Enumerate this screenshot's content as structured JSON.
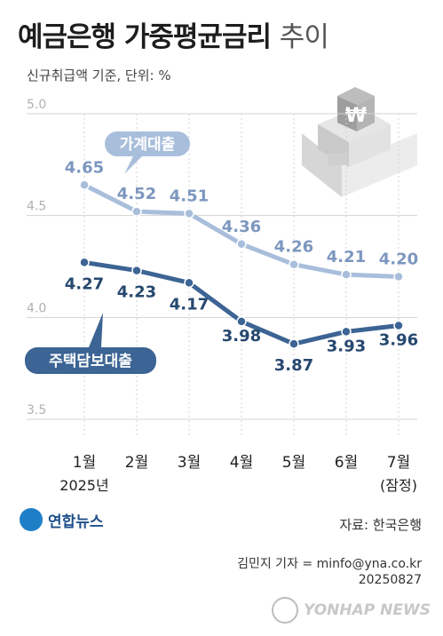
{
  "header": {
    "title_main": "예금은행 가중평균금리",
    "title_suffix": "추이",
    "subtitle": "신규취급액 기준, 단위: %"
  },
  "chart_data": {
    "type": "line",
    "categories": [
      "1월",
      "2월",
      "3월",
      "4월",
      "5월",
      "6월",
      "7월"
    ],
    "category_sublabels": [
      "2025년",
      "",
      "",
      "",
      "",
      "",
      "(잠정)"
    ],
    "ylim": [
      3.5,
      5.0
    ],
    "yticks": [
      "3.5",
      "4.0",
      "4.5",
      "5.0"
    ],
    "grid": true,
    "series": [
      {
        "name": "가계대출",
        "values": [
          4.65,
          4.52,
          4.51,
          4.36,
          4.26,
          4.21,
          4.2
        ],
        "labels": [
          "4.65",
          "4.52",
          "4.51",
          "4.36",
          "4.26",
          "4.21",
          "4.20"
        ],
        "color": "#a8bedb",
        "label_color": "#7c97bf"
      },
      {
        "name": "주택담보대출",
        "values": [
          4.27,
          4.23,
          4.17,
          3.98,
          3.87,
          3.93,
          3.96
        ],
        "labels": [
          "4.27",
          "4.23",
          "4.17",
          "3.98",
          "3.87",
          "3.93",
          "3.96"
        ],
        "color": "#3c6494",
        "label_color": "#26486f"
      }
    ]
  },
  "footer": {
    "logo_text": "연합뉴스",
    "source": "자료: 한국은행",
    "credit_line1": "김민지 기자 = minfo@yna.co.kr",
    "credit_line2": "20250827",
    "watermark": "YONHAP NEWS"
  },
  "colors": {
    "grid": "#d3d3d3",
    "tick": "#b0b0b0",
    "building": "#e0e0e0"
  },
  "icons": {
    "building": "bank-building-icon",
    "currency_sign": "₩"
  }
}
